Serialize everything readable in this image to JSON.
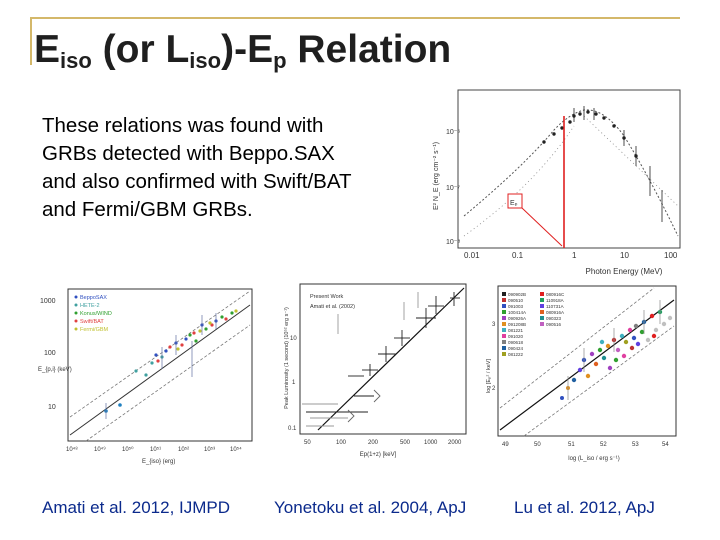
{
  "slide": {
    "title": {
      "E": "E",
      "iso1": "iso",
      "mid": " (or L",
      "iso2": "iso",
      "dash": ")-E",
      "p": "p",
      "rest": " Relation"
    },
    "body_lines": [
      "These relations was found  with",
      "GRBs detected with Beppo.SAX",
      "and also  confirmed with Swift/BAT",
      "and Fermi/GBM GRBs."
    ],
    "captions": [
      "Amati et al. 2012, IJMPD",
      "Yonetoku et al. 2004, ApJ",
      "Lu  et al. 2012, ApJ"
    ]
  },
  "figures": {
    "spectrum": {
      "xlabel": "Photon Energy (MeV)",
      "ylabel": "E² N_E (erg cm⁻² s⁻¹)",
      "xticks": [
        "0.01",
        "0.1",
        "1",
        "10",
        "100"
      ],
      "yticks": [
        "10⁻⁶",
        "10⁻⁷",
        "10⁻⁸"
      ],
      "inset_label": "Eₚ",
      "accent_color": "#e02020"
    },
    "amati": {
      "ylabel": "E_{p,i} (keV)",
      "xlabel": "E_{iso} (erg)",
      "yticks": [
        "1000",
        "100",
        "10"
      ],
      "xticks": [
        "10⁴⁸",
        "10⁴⁹",
        "10⁵⁰",
        "10⁵¹",
        "10⁵²",
        "10⁵³",
        "10⁵⁴"
      ],
      "legend": [
        "BeppoSAX",
        "HETE-2",
        "Konus/WIND",
        "Swift/BAT",
        "Fermi/GBM"
      ],
      "legend_colors": [
        "#3050c0",
        "#40a0a0",
        "#30a030",
        "#e04040",
        "#c0c030"
      ]
    },
    "yonetoku": {
      "ylabel": "Peak Luminosity (1 second) (10⁵² erg s⁻¹)",
      "xlabel": "Ep(1+z) [keV]",
      "yticks": [
        "10",
        "1",
        "0.1"
      ],
      "xticks": [
        "50",
        "100",
        "200",
        "500",
        "1000",
        "2000"
      ],
      "legend": [
        "Present Work",
        "Amati et al. (2002)"
      ]
    },
    "lu": {
      "ylabel": "log [Eₚᶻ / keV]",
      "xlabel": "log (L_iso / erg s⁻¹)",
      "xticks": [
        "49",
        "50",
        "51",
        "52",
        "53",
        "54"
      ],
      "yticks": [
        "3",
        "2"
      ],
      "legend_left": [
        "090902B",
        "090510",
        "091003",
        "100414A",
        "090926A",
        "091208B",
        "081221",
        "091020",
        "090618",
        "090424",
        "081222"
      ],
      "legend_right": [
        "080916C",
        "110918A",
        "110731A",
        "080916A",
        "090323",
        "090516"
      ]
    }
  }
}
